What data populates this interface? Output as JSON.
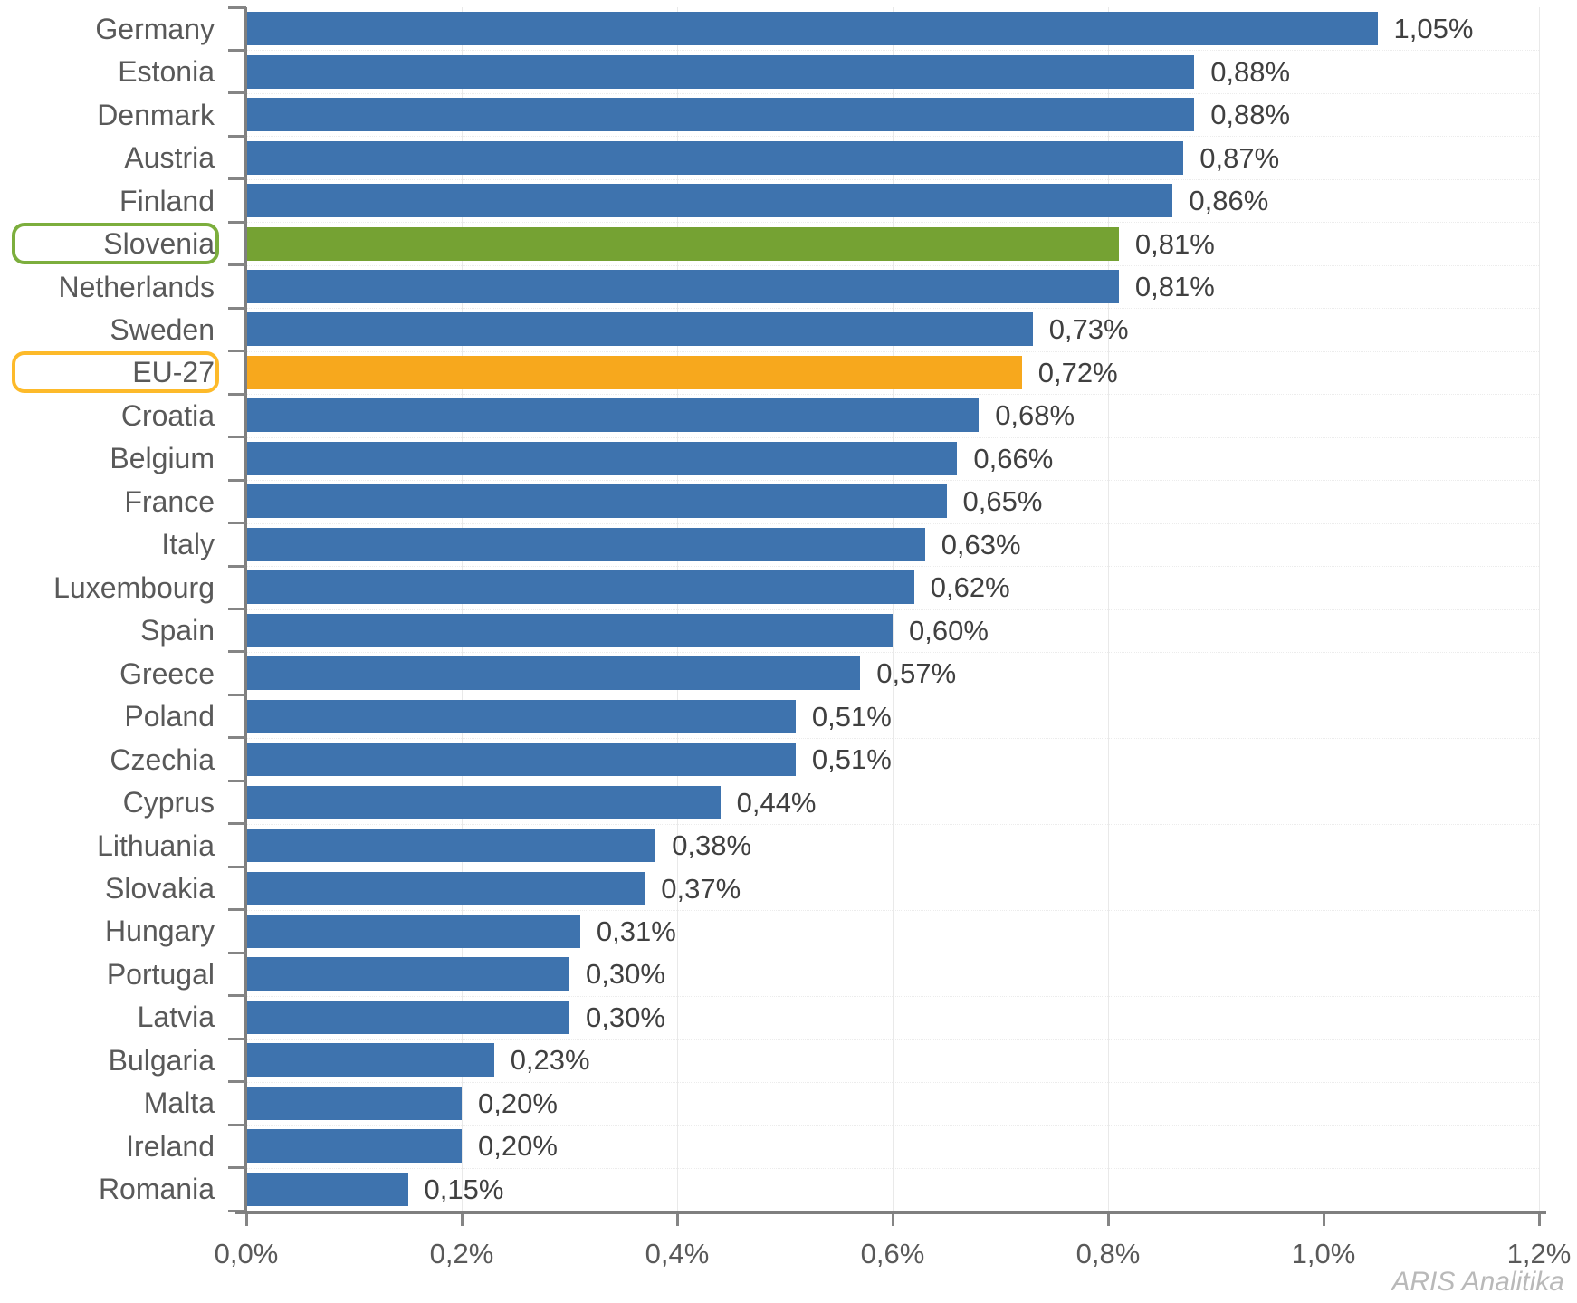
{
  "chart_data": {
    "type": "bar",
    "orientation": "horizontal",
    "title": "",
    "xlabel": "",
    "ylabel": "",
    "xlim": [
      0,
      1.2
    ],
    "grid": true,
    "legend": false,
    "decimal_separator": "comma",
    "x_ticks": [
      {
        "value": 0.0,
        "label": "0,0%"
      },
      {
        "value": 0.2,
        "label": "0,2%"
      },
      {
        "value": 0.4,
        "label": "0,4%"
      },
      {
        "value": 0.6,
        "label": "0,6%"
      },
      {
        "value": 0.8,
        "label": "0,8%"
      },
      {
        "value": 1.0,
        "label": "1,0%"
      },
      {
        "value": 1.2,
        "label": "1,2%"
      }
    ],
    "rows": [
      {
        "label": "Germany",
        "value": 1.05,
        "display": "1,05%",
        "color": "blue",
        "boxed": false
      },
      {
        "label": "Estonia",
        "value": 0.88,
        "display": "0,88%",
        "color": "blue",
        "boxed": false
      },
      {
        "label": "Denmark",
        "value": 0.88,
        "display": "0,88%",
        "color": "blue",
        "boxed": false
      },
      {
        "label": "Austria",
        "value": 0.87,
        "display": "0,87%",
        "color": "blue",
        "boxed": false
      },
      {
        "label": "Finland",
        "value": 0.86,
        "display": "0,86%",
        "color": "blue",
        "boxed": false
      },
      {
        "label": "Slovenia",
        "value": 0.81,
        "display": "0,81%",
        "color": "green",
        "boxed": true,
        "box_color": "green"
      },
      {
        "label": "Netherlands",
        "value": 0.81,
        "display": "0,81%",
        "color": "blue",
        "boxed": false
      },
      {
        "label": "Sweden",
        "value": 0.73,
        "display": "0,73%",
        "color": "blue",
        "boxed": false
      },
      {
        "label": "EU-27",
        "value": 0.72,
        "display": "0,72%",
        "color": "orange",
        "boxed": true,
        "box_color": "orange"
      },
      {
        "label": "Croatia",
        "value": 0.68,
        "display": "0,68%",
        "color": "blue",
        "boxed": false
      },
      {
        "label": "Belgium",
        "value": 0.66,
        "display": "0,66%",
        "color": "blue",
        "boxed": false
      },
      {
        "label": "France",
        "value": 0.65,
        "display": "0,65%",
        "color": "blue",
        "boxed": false
      },
      {
        "label": "Italy",
        "value": 0.63,
        "display": "0,63%",
        "color": "blue",
        "boxed": false
      },
      {
        "label": "Luxembourg",
        "value": 0.62,
        "display": "0,62%",
        "color": "blue",
        "boxed": false
      },
      {
        "label": "Spain",
        "value": 0.6,
        "display": "0,60%",
        "color": "blue",
        "boxed": false
      },
      {
        "label": "Greece",
        "value": 0.57,
        "display": "0,57%",
        "color": "blue",
        "boxed": false
      },
      {
        "label": "Poland",
        "value": 0.51,
        "display": "0,51%",
        "color": "blue",
        "boxed": false
      },
      {
        "label": "Czechia",
        "value": 0.51,
        "display": "0,51%",
        "color": "blue",
        "boxed": false
      },
      {
        "label": "Cyprus",
        "value": 0.44,
        "display": "0,44%",
        "color": "blue",
        "boxed": false
      },
      {
        "label": "Lithuania",
        "value": 0.38,
        "display": "0,38%",
        "color": "blue",
        "boxed": false
      },
      {
        "label": "Slovakia",
        "value": 0.37,
        "display": "0,37%",
        "color": "blue",
        "boxed": false
      },
      {
        "label": "Hungary",
        "value": 0.31,
        "display": "0,31%",
        "color": "blue",
        "boxed": false
      },
      {
        "label": "Portugal",
        "value": 0.3,
        "display": "0,30%",
        "color": "blue",
        "boxed": false
      },
      {
        "label": "Latvia",
        "value": 0.3,
        "display": "0,30%",
        "color": "blue",
        "boxed": false
      },
      {
        "label": "Bulgaria",
        "value": 0.23,
        "display": "0,23%",
        "color": "blue",
        "boxed": false
      },
      {
        "label": "Malta",
        "value": 0.2,
        "display": "0,20%",
        "color": "blue",
        "boxed": false
      },
      {
        "label": "Ireland",
        "value": 0.2,
        "display": "0,20%",
        "color": "blue",
        "boxed": false
      },
      {
        "label": "Romania",
        "value": 0.15,
        "display": "0,15%",
        "color": "blue",
        "boxed": false
      }
    ],
    "colors": {
      "blue": "#3e73ae",
      "green": "#75a233",
      "orange": "#f7a81d",
      "box_green": "#7cae3d",
      "box_orange": "#fdba2a",
      "axis": "#7f7f7f",
      "category_text": "#595959",
      "value_text": "#404040",
      "gridline": "#e9e9e9",
      "watermark_text": "#b9b9b9"
    },
    "watermark": "ARIS Analitika"
  }
}
